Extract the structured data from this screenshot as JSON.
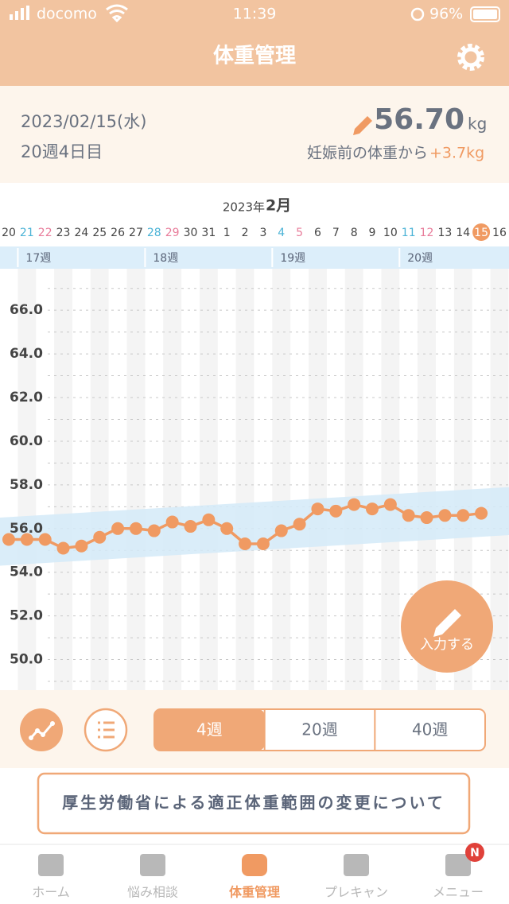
{
  "status_bar": {
    "carrier": "docomo",
    "time": "11:39",
    "battery": "96%"
  },
  "header": {
    "title": "体重管理"
  },
  "summary": {
    "date": "2023/02/15(水)",
    "week_day": "20週4日目",
    "weight": "56.70",
    "unit": "kg",
    "diff_label": "妊娠前の体重から",
    "diff": "+3.7kg"
  },
  "chart_data": {
    "type": "line",
    "title_year": "2023年",
    "title_month": "2月",
    "categories": [
      20,
      21,
      22,
      23,
      24,
      25,
      26,
      27,
      28,
      29,
      30,
      31,
      1,
      2,
      3,
      4,
      5,
      6,
      7,
      8,
      9,
      10,
      11,
      12,
      13,
      14,
      15,
      16
    ],
    "day_colors": [
      "#444",
      "#4bb3d6",
      "#e87c9a",
      "#444",
      "#444",
      "#444",
      "#444",
      "#444",
      "#4bb3d6",
      "#e87c9a",
      "#444",
      "#444",
      "#444",
      "#444",
      "#444",
      "#4bb3d6",
      "#e87c9a",
      "#444",
      "#444",
      "#444",
      "#444",
      "#444",
      "#4bb3d6",
      "#e87c9a",
      "#444",
      "#444",
      "#444",
      "#444"
    ],
    "selected_day": 26,
    "weeks": [
      "17週",
      "18週",
      "19週",
      "20週"
    ],
    "values": [
      55.5,
      55.5,
      55.5,
      55.1,
      55.2,
      55.6,
      56.0,
      56.0,
      55.9,
      56.3,
      56.1,
      56.4,
      56.0,
      55.3,
      55.3,
      55.9,
      56.2,
      56.9,
      56.8,
      57.1,
      56.9,
      57.1,
      56.6,
      56.5,
      56.6,
      56.6,
      56.7,
      null
    ],
    "color": "#f09a62",
    "band_lower": [
      54.3,
      55.7
    ],
    "band_upper": [
      56.5,
      57.9
    ],
    "band_color": "#d4eaf8",
    "ylim": [
      48.6,
      67.9
    ],
    "yticks": [
      {
        "value": 50,
        "label": "50.0"
      },
      {
        "value": 52,
        "label": "52.0"
      },
      {
        "value": 54,
        "label": "54.0"
      },
      {
        "value": 56,
        "label": "56.0"
      },
      {
        "value": 58,
        "label": "58.0"
      },
      {
        "value": 60,
        "label": "60.0"
      },
      {
        "value": 62,
        "label": "62.0"
      },
      {
        "value": 64,
        "label": "64.0"
      },
      {
        "value": 66,
        "label": "66.0"
      }
    ],
    "ygrid": [
      49,
      50,
      51,
      52,
      53,
      54,
      55,
      56,
      57,
      58,
      59,
      60,
      61,
      62,
      63,
      64,
      65,
      66,
      67
    ]
  },
  "fab": "入力する",
  "controls": {
    "ranges": [
      "4週",
      "20週",
      "40週"
    ],
    "selected": 0
  },
  "banner": "厚生労働省による適正体重範囲の変更について",
  "tabs": [
    "ホーム",
    "悩み相談",
    "体重管理",
    "プレキャン",
    "メニュー"
  ],
  "active_tab": 2,
  "badge": "N"
}
